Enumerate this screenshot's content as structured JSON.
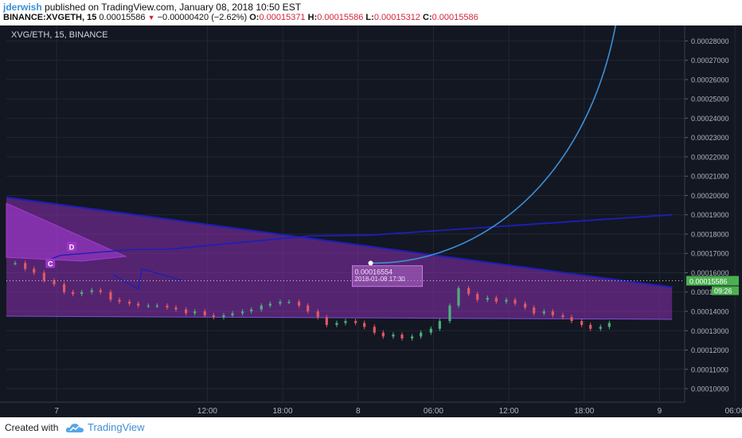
{
  "header": {
    "author": "jderwish",
    "published": "published on TradingView.com, January 08, 2018 10:50 EST",
    "symbol": "BINANCE:XVGETH, 15",
    "price": "0.00015586",
    "change": "−0.00000420 (−2.62%)",
    "o_label": "O:",
    "o_value": "0.00015371",
    "h_label": "H:",
    "h_value": "0.00015586",
    "l_label": "L:",
    "l_value": "0.00015312",
    "c_label": "C:",
    "c_value": "0.00015586"
  },
  "chart_label": "XVG/ETH, 15, BINANCE",
  "footer": {
    "created": "Created with",
    "brand": "TradingView"
  },
  "colors": {
    "background": "#131722",
    "grid": "#222734",
    "up": "#4caf7d",
    "down": "#e25766",
    "wedge_fill": "#8a2fb0",
    "trendline": "#1c1fb8",
    "projection": "#3d8fd6",
    "price_badge": "#4caf50"
  },
  "chart_data": {
    "type": "candlestick",
    "symbol": "XVG/ETH",
    "interval": "15",
    "exchange": "BINANCE",
    "y_axis": {
      "range": [
        9.3e-05,
        0.000288
      ],
      "tick_values": [
        0.0001,
        0.00011,
        0.00012,
        0.00013,
        0.00014,
        0.00015,
        0.00016,
        0.00017,
        0.00018,
        0.00019,
        0.0002,
        0.00021,
        0.00022,
        0.00023,
        0.00024,
        0.00025,
        0.00026,
        0.00027,
        0.00028
      ],
      "tick_labels": [
        "0.00010000",
        "0.00011000",
        "0.00012000",
        "0.00013000",
        "0.00014000",
        "0.00015000",
        "0.00016000",
        "0.00017000",
        "0.00018000",
        "0.00019000",
        "0.00020000",
        "0.00021000",
        "0.00022000",
        "0.00023000",
        "0.00024000",
        "0.00025000",
        "0.00026000",
        "0.00027000",
        "0.00028000"
      ]
    },
    "x_axis": {
      "unit": "hours since Jan 7 00:00",
      "range": [
        -4,
        50
      ],
      "ticks": [
        {
          "t": 0,
          "label": "7"
        },
        {
          "t": 12,
          "label": "12:00"
        },
        {
          "t": 18,
          "label": "18:00"
        },
        {
          "t": 24,
          "label": "8"
        },
        {
          "t": 30,
          "label": "06:00"
        },
        {
          "t": 36,
          "label": "12:00"
        },
        {
          "t": 42,
          "label": "18:00"
        },
        {
          "t": 48,
          "label": "9"
        },
        {
          "t": 54,
          "label": "06:00"
        }
      ]
    },
    "close_series": [
      [
        -3.3,
        0.000165
      ],
      [
        -2.5,
        0.000162
      ],
      [
        -1.8,
        0.00016
      ],
      [
        -1.0,
        0.000156
      ],
      [
        -0.2,
        0.000154
      ],
      [
        0.6,
        0.00015
      ],
      [
        1.3,
        0.000149
      ],
      [
        2.0,
        0.00015
      ],
      [
        2.8,
        0.000151
      ],
      [
        3.5,
        0.00015
      ],
      [
        4.3,
        0.000146
      ],
      [
        5.0,
        0.000145
      ],
      [
        5.8,
        0.000144
      ],
      [
        6.5,
        0.000143
      ],
      [
        7.3,
        0.000143
      ],
      [
        8.0,
        0.000143
      ],
      [
        8.8,
        0.000142
      ],
      [
        9.5,
        0.000141
      ],
      [
        10.3,
        0.000139
      ],
      [
        11.0,
        0.00014
      ],
      [
        11.8,
        0.000138
      ],
      [
        12.5,
        0.000137
      ],
      [
        13.3,
        0.000138
      ],
      [
        14.0,
        0.000139
      ],
      [
        14.8,
        0.00014
      ],
      [
        15.5,
        0.000141
      ],
      [
        16.3,
        0.000143
      ],
      [
        17.0,
        0.000144
      ],
      [
        17.8,
        0.000145
      ],
      [
        18.5,
        0.000145
      ],
      [
        19.3,
        0.000143
      ],
      [
        20.0,
        0.00014
      ],
      [
        20.8,
        0.000137
      ],
      [
        21.5,
        0.000133
      ],
      [
        22.3,
        0.000134
      ],
      [
        23.0,
        0.000135
      ],
      [
        23.8,
        0.000134
      ],
      [
        24.5,
        0.000132
      ],
      [
        25.3,
        0.000129
      ],
      [
        26.0,
        0.000127
      ],
      [
        26.8,
        0.000128
      ],
      [
        27.5,
        0.000126
      ],
      [
        28.3,
        0.000127
      ],
      [
        29.0,
        0.000129
      ],
      [
        29.8,
        0.000131
      ],
      [
        30.5,
        0.000135
      ],
      [
        31.3,
        0.000143
      ],
      [
        32.0,
        0.000152
      ],
      [
        32.8,
        0.000149
      ],
      [
        33.5,
        0.000146
      ],
      [
        34.3,
        0.000147
      ],
      [
        35.0,
        0.000145
      ],
      [
        35.8,
        0.000146
      ],
      [
        36.5,
        0.000144
      ],
      [
        37.3,
        0.000142
      ],
      [
        38.0,
        0.000139
      ],
      [
        38.8,
        0.00014
      ],
      [
        39.5,
        0.000138
      ],
      [
        40.3,
        0.000137
      ],
      [
        41.0,
        0.000135
      ],
      [
        41.8,
        0.000133
      ],
      [
        42.5,
        0.000131
      ],
      [
        43.3,
        0.000132
      ],
      [
        44.0,
        0.000134
      ]
    ],
    "wedge": {
      "upper_line": [
        [
          -4,
          0.000199
        ],
        [
          49,
          0.0001525
        ]
      ],
      "lower_line": [
        [
          -4,
          0.0001375
        ],
        [
          49,
          0.0001359
        ]
      ]
    },
    "small_wedge": {
      "points": [
        [
          -4,
          0.000196
        ],
        [
          5.5,
          0.0001685
        ],
        [
          2.0,
          0.000166
        ],
        [
          -4,
          0.000168
        ]
      ]
    },
    "pattern_lines": [
      [
        [
          -0.5,
          0.000167
        ],
        [
          0.3,
          0.000169
        ],
        [
          6.0,
          0.000172
        ],
        [
          9.0,
          0.0001722
        ]
      ],
      [
        [
          4.5,
          0.000159
        ],
        [
          6.5,
          0.0001515
        ],
        [
          6.8,
          0.000162
        ],
        [
          10.0,
          0.000156
        ]
      ]
    ],
    "pattern_labels": [
      {
        "text": "D",
        "at": [
          1.2,
          0.0001731
        ]
      },
      {
        "text": "C",
        "at": [
          -0.5,
          0.0001645
        ]
      }
    ],
    "resistance_line": [
      [
        9.0,
        0.0001722
      ],
      [
        20.0,
        0.000179
      ],
      [
        25.0,
        0.0001795
      ],
      [
        49,
        0.00019
      ]
    ],
    "projection_curve": {
      "start": [
        25.0,
        0.000165
      ],
      "end": [
        44.5,
        0.000288
      ],
      "label": "0.00016554",
      "label_at": [
        25.0,
        0.0001595
      ],
      "sublabel": "2018-01-08 17:30",
      "sublabel_at": [
        25.0,
        0.0001568
      ]
    },
    "current_price": {
      "value": 0.00015586,
      "label": "0.00015586",
      "countdown": "09:26"
    }
  }
}
